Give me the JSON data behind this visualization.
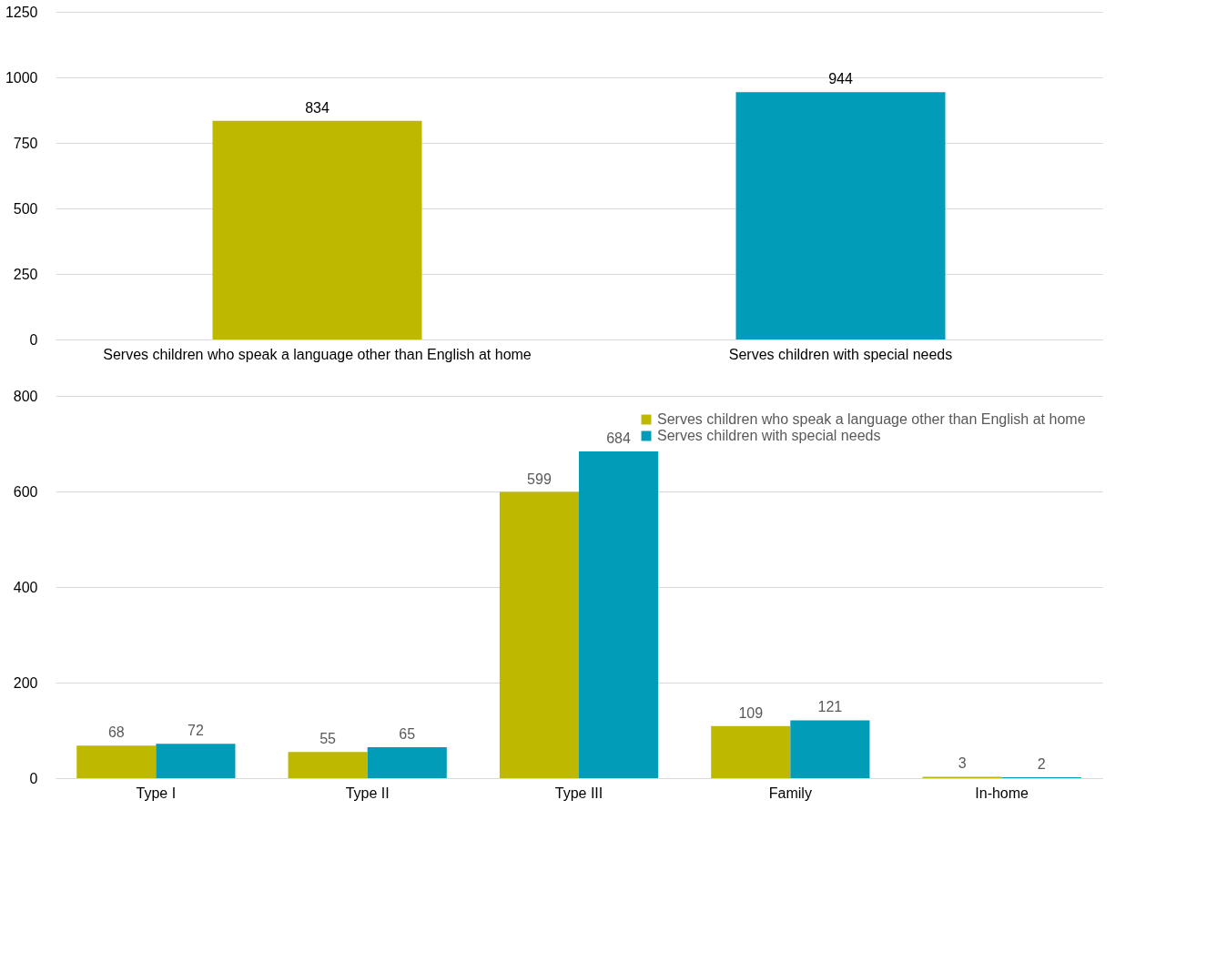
{
  "chart_data": [
    {
      "type": "bar",
      "categories": [
        "Serves children who speak a language other than English at home",
        "Serves children with special needs"
      ],
      "values": [
        834,
        944
      ],
      "colors": [
        "#bfb800",
        "#009cb8"
      ],
      "ylim": [
        0,
        1250
      ],
      "yticks": [
        0,
        250,
        500,
        750,
        1000,
        1250
      ],
      "grid": "y",
      "data_labels": true
    },
    {
      "type": "bar",
      "categories": [
        "Type I",
        "Type II",
        "Type III",
        "Family",
        "In-home"
      ],
      "series": [
        {
          "name": "Serves children who speak a language other than English at home",
          "color": "#bfb800",
          "values": [
            68,
            55,
            599,
            109,
            3
          ]
        },
        {
          "name": "Serves children with special needs",
          "color": "#009cb8",
          "values": [
            72,
            65,
            684,
            121,
            2
          ]
        }
      ],
      "ylim": [
        0,
        800
      ],
      "yticks": [
        0,
        200,
        400,
        600,
        800
      ],
      "grid": "y",
      "data_labels": true,
      "legend": "top right"
    }
  ]
}
